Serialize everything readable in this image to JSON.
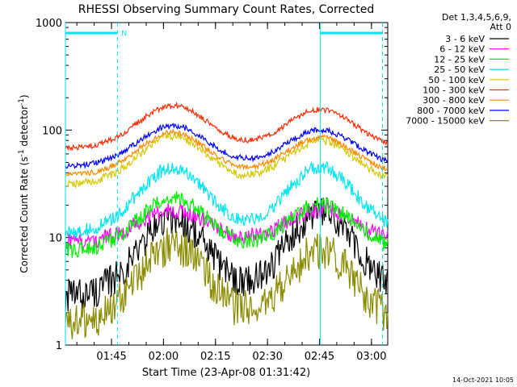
{
  "chart_data": {
    "type": "line",
    "title": "RHESSI Observing Summary Count Rates, Corrected",
    "xlabel": "Start Time (23-Apr-08 01:31:42)",
    "ylabel": "Corrected Count Rate (s",
    "ylabel_sup1": "-1",
    "ylabel_mid": " detector",
    "ylabel_sup2": "-1",
    "ylabel_end": ")",
    "yscale": "log",
    "ylim": [
      1,
      1000
    ],
    "xlim_minutes": [
      0,
      93
    ],
    "x_ticks": [
      {
        "label": "01:45",
        "minutes": 13.3
      },
      {
        "label": "02:00",
        "minutes": 28.3
      },
      {
        "label": "02:15",
        "minutes": 43.3
      },
      {
        "label": "02:30",
        "minutes": 58.3
      },
      {
        "label": "02:45",
        "minutes": 73.3
      },
      {
        "label": "03:00",
        "minutes": 88.3
      }
    ],
    "y_ticks": [
      {
        "label": "1",
        "value": 1
      },
      {
        "label": "10",
        "value": 10
      },
      {
        "label": "100",
        "value": 100
      },
      {
        "label": "1000",
        "value": 1000
      }
    ],
    "legend_header": [
      "Det 1,3,4,5,6,9,",
      "Att 0"
    ],
    "legend_position": "right",
    "series": [
      {
        "name": "3 - 6 keV",
        "color": "#000000",
        "base": 2.8,
        "peaks": [
          15,
          17
        ],
        "noise": 0.12
      },
      {
        "name": "6 - 12 keV",
        "color": "#ff00ff",
        "base": 9.0,
        "peaks": [
          18,
          18
        ],
        "noise": 0.06
      },
      {
        "name": "12 - 25 keV",
        "color": "#00ee00",
        "base": 7.5,
        "peaks": [
          23,
          20
        ],
        "noise": 0.06
      },
      {
        "name": "25 - 50 keV",
        "color": "#00e5ee",
        "base": 11.0,
        "peaks": [
          45,
          45
        ],
        "noise": 0.05
      },
      {
        "name": "50 - 100 keV",
        "color": "#d4c800",
        "base": 31.0,
        "peaks": [
          88,
          80
        ],
        "noise": 0.03
      },
      {
        "name": "100 - 300 keV",
        "color": "#ff2a00",
        "base": 67.0,
        "peaks": [
          170,
          155
        ],
        "noise": 0.02
      },
      {
        "name": "300 - 800 keV",
        "color": "#ff8800",
        "base": 38.0,
        "peaks": [
          95,
          85
        ],
        "noise": 0.02
      },
      {
        "name": "800 - 7000 keV",
        "color": "#0000ff",
        "base": 46.0,
        "peaks": [
          110,
          100
        ],
        "noise": 0.02
      },
      {
        "name": "7000 - 15000 keV",
        "color": "#8b8b00",
        "base": 1.5,
        "peaks": [
          8.5,
          7.5
        ],
        "noise": 0.14
      }
    ],
    "peak_times_minutes": [
      31,
      73.5
    ],
    "saa_bars": [
      {
        "start_minutes": 0,
        "end_minutes": 15,
        "label": "N"
      },
      {
        "start_minutes": 73.5,
        "end_minutes": 91.5,
        "label": ""
      }
    ],
    "night_markers_minutes": [
      15,
      91.5
    ],
    "day_markers_minutes": [
      73.5
    ],
    "timestamp": "14-Oct-2021 10:05"
  }
}
